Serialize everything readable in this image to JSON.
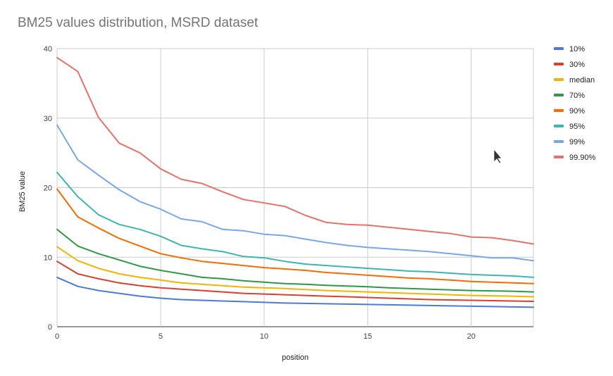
{
  "chart_data": {
    "type": "line",
    "title": "BM25 values distribution, MSRD dataset",
    "xlabel": "position",
    "ylabel": "BM25 value",
    "xlim": [
      0,
      23
    ],
    "ylim": [
      0,
      40
    ],
    "xticks": [
      0,
      5,
      10,
      15,
      20
    ],
    "yticks": [
      0,
      10,
      20,
      30,
      40
    ],
    "grid": true,
    "legend_position": "right",
    "x": [
      0,
      1,
      2,
      3,
      4,
      5,
      6,
      7,
      8,
      9,
      10,
      11,
      12,
      13,
      14,
      15,
      16,
      17,
      18,
      19,
      20,
      21,
      22,
      23
    ],
    "series": [
      {
        "name": "10%",
        "color": "#4a7bdc",
        "values": [
          7.1,
          5.8,
          5.2,
          4.8,
          4.4,
          4.1,
          3.9,
          3.8,
          3.7,
          3.6,
          3.5,
          3.4,
          3.35,
          3.3,
          3.25,
          3.2,
          3.15,
          3.1,
          3.05,
          3.0,
          2.95,
          2.9,
          2.85,
          2.8
        ]
      },
      {
        "name": "30%",
        "color": "#d9402f",
        "values": [
          9.4,
          7.6,
          6.9,
          6.3,
          5.9,
          5.6,
          5.4,
          5.2,
          5.0,
          4.8,
          4.7,
          4.6,
          4.5,
          4.4,
          4.3,
          4.2,
          4.1,
          4.0,
          3.9,
          3.85,
          3.8,
          3.75,
          3.7,
          3.65
        ]
      },
      {
        "name": "median",
        "color": "#f4b400",
        "values": [
          11.5,
          9.5,
          8.4,
          7.6,
          7.1,
          6.7,
          6.3,
          6.1,
          5.9,
          5.7,
          5.6,
          5.5,
          5.35,
          5.2,
          5.1,
          5.0,
          4.9,
          4.8,
          4.7,
          4.6,
          4.5,
          4.45,
          4.4,
          4.3
        ]
      },
      {
        "name": "70%",
        "color": "#2e9a48",
        "values": [
          14.0,
          11.6,
          10.5,
          9.6,
          8.7,
          8.1,
          7.6,
          7.1,
          6.9,
          6.6,
          6.4,
          6.2,
          6.1,
          5.95,
          5.85,
          5.75,
          5.6,
          5.5,
          5.4,
          5.3,
          5.2,
          5.15,
          5.1,
          5.0
        ]
      },
      {
        "name": "90%",
        "color": "#f56d00",
        "values": [
          19.8,
          15.8,
          14.2,
          12.7,
          11.6,
          10.5,
          9.9,
          9.4,
          9.1,
          8.8,
          8.5,
          8.3,
          8.1,
          7.8,
          7.6,
          7.4,
          7.2,
          7.0,
          6.9,
          6.7,
          6.5,
          6.4,
          6.3,
          6.2
        ]
      },
      {
        "name": "95%",
        "color": "#3bb8ad",
        "values": [
          22.2,
          18.7,
          16.1,
          14.7,
          14.0,
          13.0,
          11.7,
          11.2,
          10.8,
          10.1,
          9.9,
          9.4,
          9.0,
          8.8,
          8.6,
          8.4,
          8.2,
          8.0,
          7.9,
          7.7,
          7.5,
          7.4,
          7.3,
          7.1
        ]
      },
      {
        "name": "99%",
        "color": "#78a6f0",
        "values": [
          29.0,
          24.0,
          21.8,
          19.7,
          18.0,
          16.9,
          15.5,
          15.1,
          14.0,
          13.8,
          13.3,
          13.1,
          12.6,
          12.1,
          11.7,
          11.4,
          11.2,
          11.0,
          10.8,
          10.5,
          10.2,
          9.9,
          9.9,
          9.5
        ]
      },
      {
        "name": "99.90%",
        "color": "#e8716b",
        "values": [
          38.7,
          36.7,
          30.1,
          26.4,
          25.0,
          22.7,
          21.2,
          20.6,
          19.4,
          18.3,
          17.8,
          17.3,
          16.0,
          15.0,
          14.7,
          14.6,
          14.3,
          14.0,
          13.7,
          13.4,
          12.9,
          12.8,
          12.4,
          11.9
        ]
      }
    ]
  }
}
